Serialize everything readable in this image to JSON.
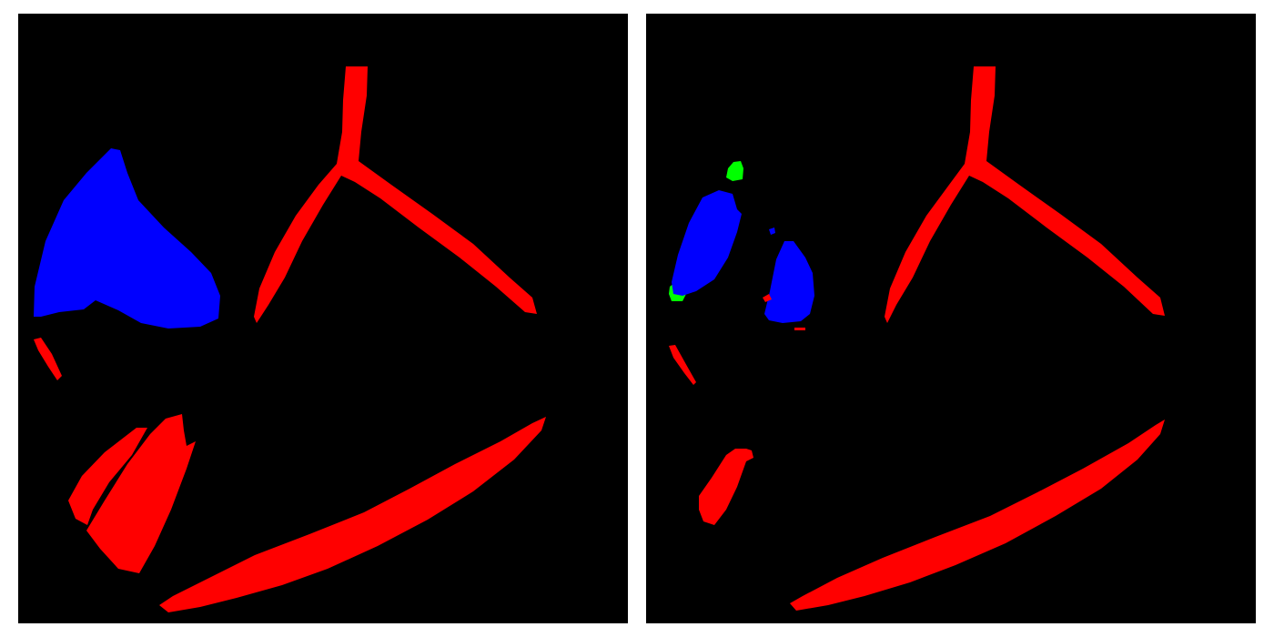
{
  "colors": {
    "background": "#000000",
    "divider": "#ffffff",
    "class_red": "#ff0000",
    "class_blue": "#0000ff",
    "class_green": "#00ff00"
  },
  "panels": [
    {
      "name": "left-mask"
    },
    {
      "name": "right-mask"
    }
  ]
}
